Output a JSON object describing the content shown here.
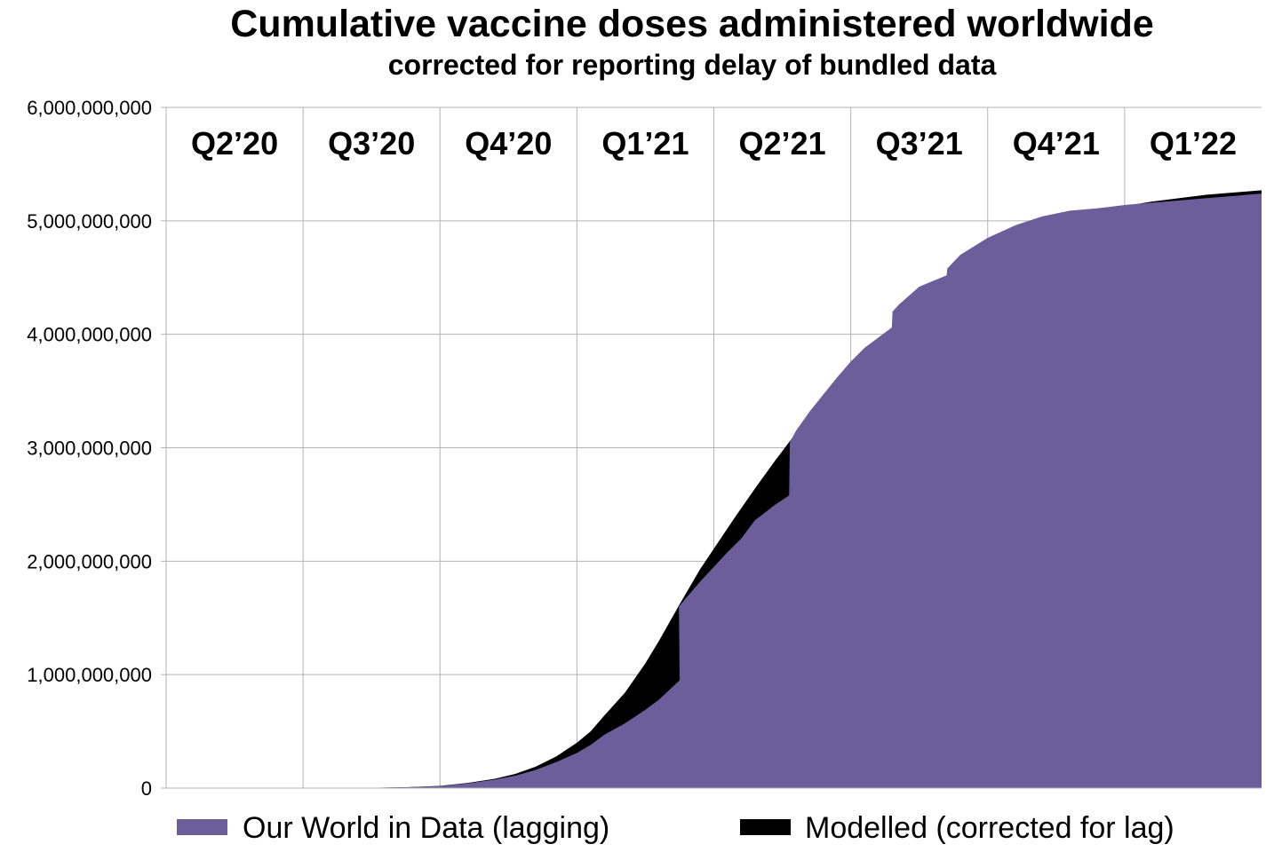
{
  "colors": {
    "lagging": "#6b5e9b",
    "modelled": "#000000",
    "grid": "#b3b3b3",
    "background": "#ffffff"
  },
  "chart_data": {
    "type": "area",
    "title": "Cumulative vaccine doses administered worldwide",
    "subtitle": "corrected for reporting delay of bundled data",
    "xlabel": "",
    "ylabel": "",
    "ylim": [
      0,
      6000000000
    ],
    "yticks": [
      0,
      1000000000,
      2000000000,
      3000000000,
      4000000000,
      5000000000,
      6000000000
    ],
    "ytick_labels": [
      "0",
      "1,000,000,000",
      "2,000,000,000",
      "3,000,000,000",
      "4,000,000,000",
      "5,000,000,000",
      "6,000,000,000"
    ],
    "x_unit": "quarter",
    "xlim": [
      0,
      8
    ],
    "quarters": [
      "Q2’20",
      "Q3’20",
      "Q4’20",
      "Q1’21",
      "Q2’21",
      "Q3’21",
      "Q4’21",
      "Q1’22"
    ],
    "grid": true,
    "legend_position": "bottom",
    "series": [
      {
        "name": "Our World in Data (lagging)",
        "color": "#6b5e9b",
        "x": [
          0,
          1.5,
          1.75,
          2,
          2.2,
          2.4,
          2.55,
          2.7,
          2.85,
          3,
          3.1,
          3.2,
          3.35,
          3.5,
          3.6,
          3.75,
          3.745,
          3.8,
          3.9,
          4,
          4.1,
          4.2,
          4.3,
          4.45,
          4.55,
          4.555,
          4.6,
          4.7,
          4.8,
          4.9,
          5,
          5.1,
          5.3,
          5.305,
          5.35,
          5.5,
          5.7,
          5.705,
          5.8,
          6,
          6.2,
          6.4,
          6.6,
          6.8,
          7,
          7.2,
          7.4,
          7.6,
          7.8,
          8
        ],
        "y": [
          0,
          3000000,
          7000000,
          18000000,
          40000000,
          75000000,
          110000000,
          160000000,
          230000000,
          310000000,
          380000000,
          470000000,
          570000000,
          690000000,
          780000000,
          950000000,
          1600000000,
          1680000000,
          1820000000,
          1950000000,
          2080000000,
          2200000000,
          2360000000,
          2500000000,
          2580000000,
          3050000000,
          3150000000,
          3320000000,
          3470000000,
          3620000000,
          3760000000,
          3880000000,
          4060000000,
          4200000000,
          4260000000,
          4420000000,
          4520000000,
          4580000000,
          4700000000,
          4850000000,
          4960000000,
          5040000000,
          5090000000,
          5110000000,
          5140000000,
          5160000000,
          5180000000,
          5200000000,
          5220000000,
          5240000000
        ]
      },
      {
        "name": "Modelled (corrected for lag)",
        "color": "#000000",
        "x": [
          0,
          1.5,
          1.75,
          2,
          2.2,
          2.4,
          2.55,
          2.7,
          2.85,
          3,
          3.1,
          3.2,
          3.35,
          3.5,
          3.6,
          3.75,
          3.9,
          4,
          4.15,
          4.3,
          4.45,
          4.6,
          4.75,
          4.9,
          5,
          5.2,
          5.4,
          5.6,
          5.8,
          6,
          6.2,
          6.4,
          6.6,
          6.8,
          7,
          7.2,
          7.4,
          7.6,
          7.8,
          8
        ],
        "y": [
          0,
          3000000,
          8000000,
          20000000,
          45000000,
          82000000,
          125000000,
          190000000,
          280000000,
          400000000,
          500000000,
          640000000,
          840000000,
          1100000000,
          1300000000,
          1620000000,
          1930000000,
          2110000000,
          2380000000,
          2640000000,
          2890000000,
          3130000000,
          3350000000,
          3550000000,
          3680000000,
          3920000000,
          4150000000,
          4340000000,
          4530000000,
          4700000000,
          4840000000,
          4950000000,
          5030000000,
          5090000000,
          5130000000,
          5170000000,
          5200000000,
          5230000000,
          5250000000,
          5270000000
        ]
      }
    ]
  }
}
